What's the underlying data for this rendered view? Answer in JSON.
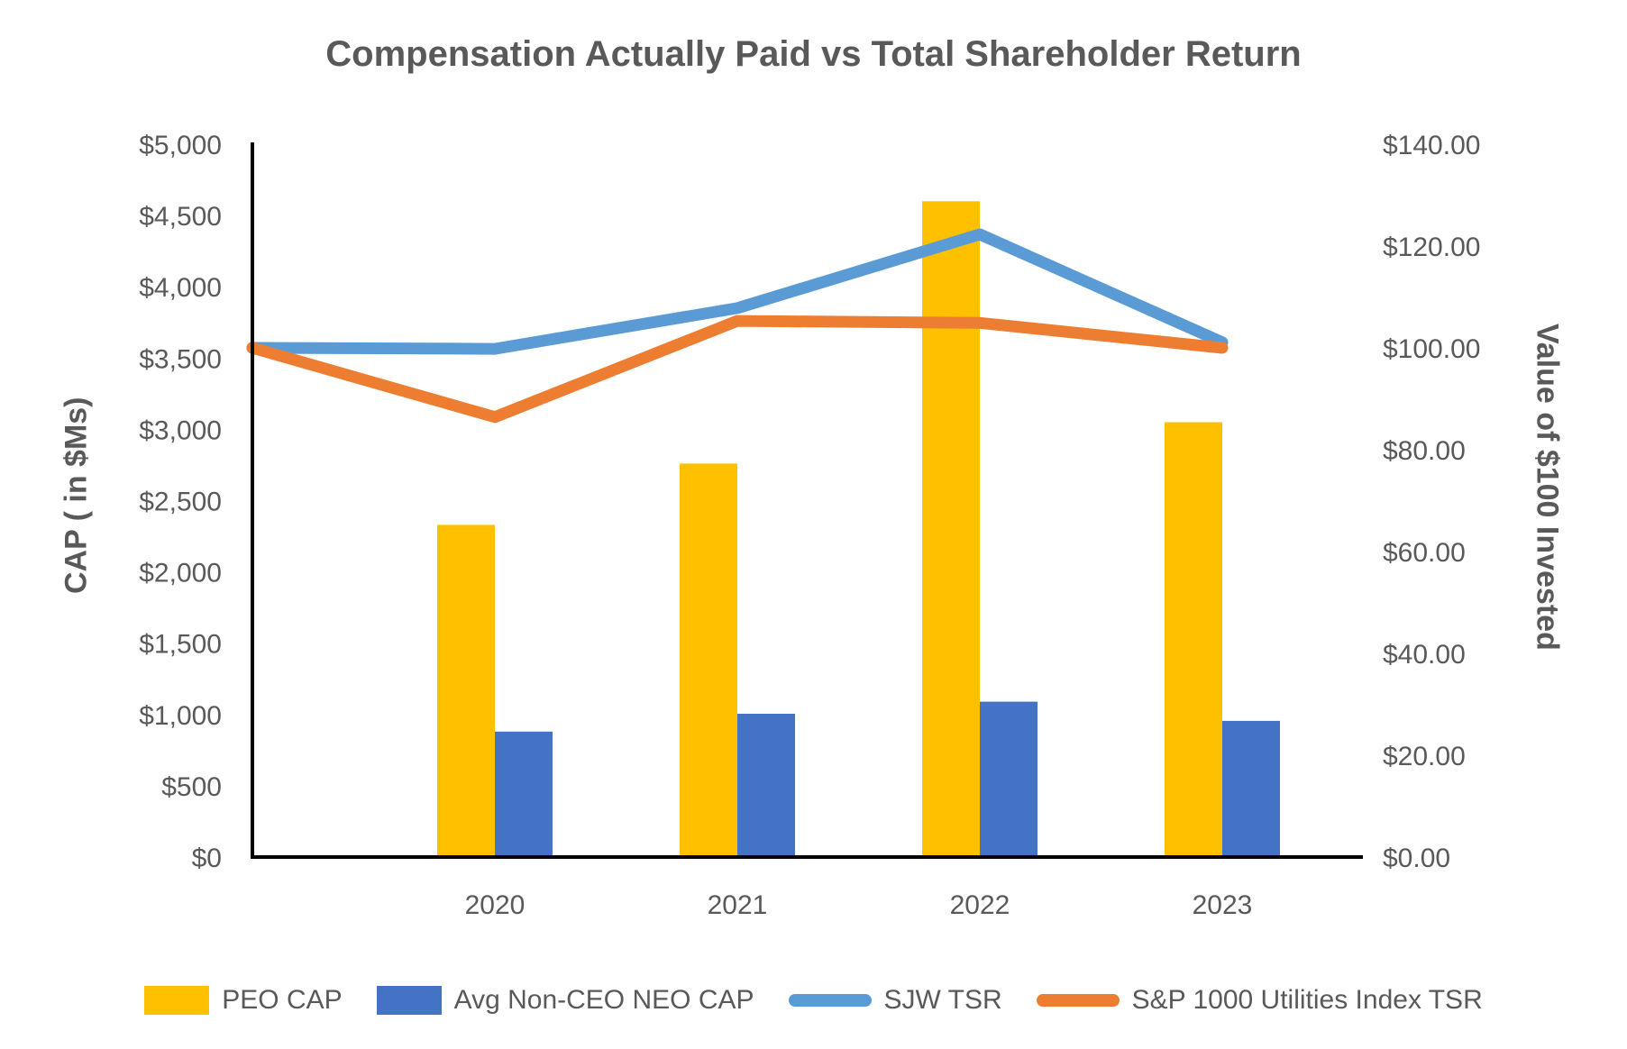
{
  "title": "Compensation Actually Paid vs Total Shareholder Return",
  "chart_data": {
    "type": "combo (clustered bar + line), dual y-axes",
    "title": "Compensation Actually Paid vs Total Shareholder Return",
    "categories": [
      "2020",
      "2021",
      "2022",
      "2023"
    ],
    "bar_series": [
      {
        "name": "PEO CAP",
        "color": "#FFC000",
        "axis": "left",
        "values": [
          2330,
          2760,
          4600,
          3050
        ]
      },
      {
        "name": "Avg Non-CEO NEO CAP",
        "color": "#4472C4",
        "axis": "left",
        "values": [
          880,
          1005,
          1090,
          955
        ]
      }
    ],
    "line_series": [
      {
        "name": "SJW TSR",
        "color": "#5B9BD5",
        "axis": "right",
        "baseline": 100,
        "values": [
          99.8,
          107.8,
          122.3,
          101.1
        ]
      },
      {
        "name": "S&P 1000 Utilities Index TSR",
        "color": "#ED7D31",
        "axis": "right",
        "baseline": 100,
        "values": [
          86.4,
          105.3,
          104.9,
          100.0
        ]
      }
    ],
    "left_axis": {
      "title": "CAP ( in $Ms)",
      "min": 0,
      "max": 5000,
      "step": 500,
      "tick_labels": [
        "$0",
        "$500",
        "$1,000",
        "$1,500",
        "$2,000",
        "$2,500",
        "$3,000",
        "$3,500",
        "$4,000",
        "$4,500",
        "$5,000"
      ]
    },
    "right_axis": {
      "title": "Value of $100 Invested",
      "min": 0,
      "max": 140,
      "step": 20,
      "tick_labels": [
        "$0.00",
        "$20.00",
        "$40.00",
        "$60.00",
        "$80.00",
        "$100.00",
        "$120.00",
        "$140.00"
      ]
    },
    "x_axis": {
      "tick_labels": [
        "2020",
        "2021",
        "2022",
        "2023"
      ]
    },
    "legend_position": "bottom",
    "grid": "off",
    "notes": "Lines start at the left axis at the $100 baseline; bars plotted on left axis, lines on right axis",
    "colors": {
      "peo_cap": "#FFC000",
      "avg_non_ceo_neo_cap": "#4472C4",
      "sjw_tsr": "#5B9BD5",
      "sp_1000_utilities_index_tsr": "#ED7D31",
      "text": "#595959",
      "axis_line": "#000000"
    }
  }
}
